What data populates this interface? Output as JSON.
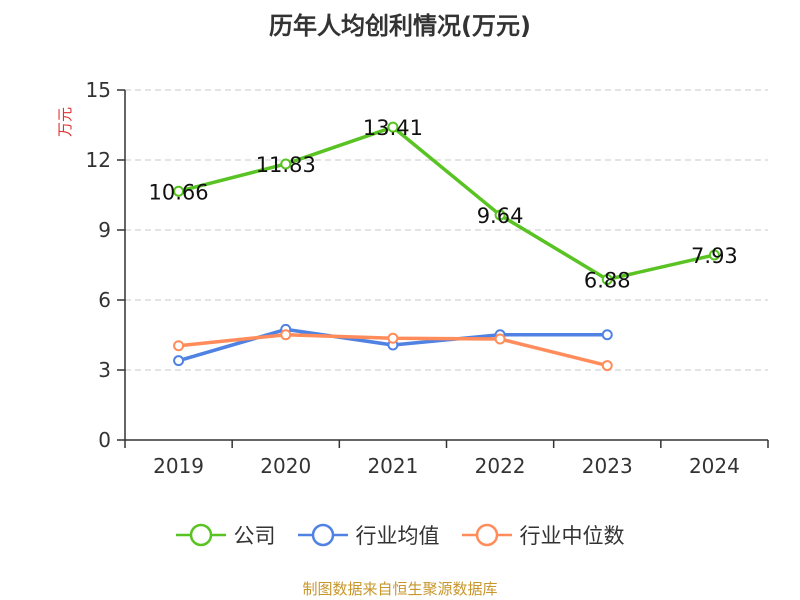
{
  "chart_data": {
    "type": "line",
    "title": "历年人均创利情况(万元)",
    "ylabel": "万元",
    "xlabel": "",
    "categories": [
      "2019",
      "2020",
      "2021",
      "2022",
      "2023",
      "2024"
    ],
    "ylim": [
      0,
      15
    ],
    "yticks": [
      "0",
      "3",
      "6",
      "9",
      "12",
      "15"
    ],
    "grid": true,
    "legend_position": "bottom",
    "series": [
      {
        "name": "公司",
        "color": "#58c322",
        "values": [
          10.66,
          11.83,
          13.41,
          9.64,
          6.88,
          7.93
        ],
        "labels": [
          "10.66",
          "11.83",
          "13.41",
          "9.64",
          "6.88",
          "7.93"
        ]
      },
      {
        "name": "行业均值",
        "color": "#4f82e3",
        "values": [
          3.4,
          4.74,
          4.07,
          4.51,
          4.51,
          null
        ]
      },
      {
        "name": "行业中位数",
        "color": "#ff8c5a",
        "values": [
          4.04,
          4.51,
          4.36,
          4.33,
          3.19,
          null
        ]
      }
    ]
  },
  "source": "制图数据来自恒生聚源数据库"
}
